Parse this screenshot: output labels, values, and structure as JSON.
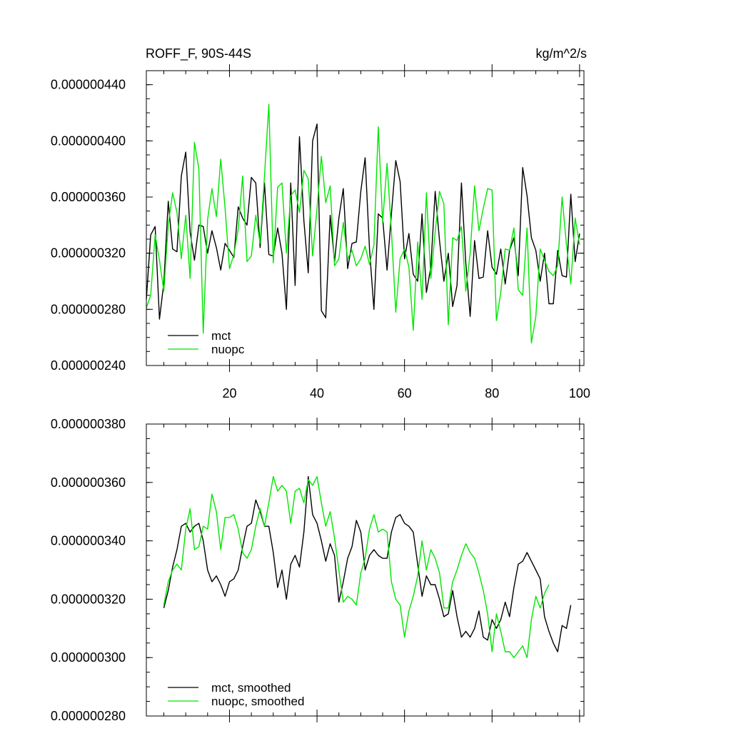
{
  "colors": {
    "mct": "#000000",
    "nuopc": "#00e600"
  },
  "chart_data": [
    {
      "type": "line",
      "title": "ROFF_F, 90S-44S",
      "units": "kg/m^2/s",
      "xlim": [
        1,
        101
      ],
      "ylim": [
        2.4e-07,
        4.5e-07
      ],
      "xticks": [
        20,
        40,
        60,
        80,
        100
      ],
      "xtick_labels": [
        "20",
        "40",
        "60",
        "80",
        "100"
      ],
      "yticks": [
        2.4e-07,
        2.8e-07,
        3.2e-07,
        3.6e-07,
        4e-07,
        4.4e-07
      ],
      "ytick_labels": [
        "0.000000240",
        "0.000000280",
        "0.000000320",
        "0.000000360",
        "0.000000400",
        "0.000000440"
      ],
      "legend_position": "bottom-left",
      "series": [
        {
          "name": "mct",
          "color_key": "mct",
          "x_start": 1,
          "values": [
            2.87e-07,
            3.33e-07,
            3.39e-07,
            2.73e-07,
            2.99e-07,
            3.57e-07,
            3.23e-07,
            3.21e-07,
            3.75e-07,
            3.92e-07,
            3.35e-07,
            3.15e-07,
            3.4e-07,
            3.39e-07,
            3.2e-07,
            3.36e-07,
            3.24e-07,
            3.08e-07,
            3.27e-07,
            3.22e-07,
            3.17e-07,
            3.53e-07,
            3.45e-07,
            3.4e-07,
            3.74e-07,
            3.7e-07,
            3.24e-07,
            3.7e-07,
            3.19e-07,
            3.18e-07,
            3.38e-07,
            3.2e-07,
            2.8e-07,
            3.7e-07,
            2.97e-07,
            4.03e-07,
            3.43e-07,
            3.06e-07,
            4e-07,
            4.12e-07,
            2.79e-07,
            2.74e-07,
            3.47e-07,
            3.14e-07,
            3.45e-07,
            3.66e-07,
            3.09e-07,
            3.27e-07,
            3.28e-07,
            3.64e-07,
            3.88e-07,
            3.23e-07,
            2.8e-07,
            3.48e-07,
            3.45e-07,
            3.08e-07,
            3.48e-07,
            3.86e-07,
            3.71e-07,
            3.16e-07,
            3.34e-07,
            3.05e-07,
            3e-07,
            3.48e-07,
            2.92e-07,
            3.1e-07,
            3.64e-07,
            3.29e-07,
            3e-07,
            3.2e-07,
            2.82e-07,
            2.97e-07,
            3.7e-07,
            3.13e-07,
            2.75e-07,
            3.29e-07,
            3.02e-07,
            3.03e-07,
            3.36e-07,
            3.1e-07,
            3.05e-07,
            3.23e-07,
            2.98e-07,
            3.22e-07,
            3.31e-07,
            3.04e-07,
            3.81e-07,
            3.61e-07,
            3.31e-07,
            3.22e-07,
            3e-07,
            3.2e-07,
            2.84e-07,
            2.84e-07,
            3.22e-07,
            3.04e-07,
            3.03e-07,
            3.62e-07,
            3.14e-07,
            3.34e-07
          ]
        },
        {
          "name": "nuopc",
          "color_key": "nuopc",
          "x_start": 1,
          "values": [
            2.81e-07,
            2.9e-07,
            3.33e-07,
            3.15e-07,
            2.93e-07,
            3.4e-07,
            3.63e-07,
            3.49e-07,
            3.16e-07,
            3.47e-07,
            3.02e-07,
            3.99e-07,
            3.8e-07,
            2.63e-07,
            3.44e-07,
            3.66e-07,
            3.46e-07,
            3.87e-07,
            3.52e-07,
            3.09e-07,
            3.19e-07,
            3.37e-07,
            3.75e-07,
            3.14e-07,
            3.18e-07,
            3.47e-07,
            3.27e-07,
            3.75e-07,
            4.26e-07,
            3.13e-07,
            3.67e-07,
            3.7e-07,
            3.2e-07,
            3.61e-07,
            3.65e-07,
            3.49e-07,
            3.79e-07,
            3.73e-07,
            3.18e-07,
            3.52e-07,
            3.89e-07,
            3.56e-07,
            3.68e-07,
            3.11e-07,
            3.16e-07,
            3.42e-07,
            3.16e-07,
            3.22e-07,
            3.11e-07,
            3.16e-07,
            3.25e-07,
            3.12e-07,
            3.26e-07,
            4.1e-07,
            3.42e-07,
            3.84e-07,
            3.36e-07,
            2.78e-07,
            3.16e-07,
            3.23e-07,
            3.1e-07,
            2.65e-07,
            3.28e-07,
            2.87e-07,
            3.63e-07,
            3.02e-07,
            3.35e-07,
            3.64e-07,
            3.55e-07,
            2.69e-07,
            3.31e-07,
            3.29e-07,
            3.39e-07,
            2.93e-07,
            3.2e-07,
            3.68e-07,
            3.36e-07,
            3.52e-07,
            3.66e-07,
            3.65e-07,
            2.72e-07,
            2.92e-07,
            3.23e-07,
            3.22e-07,
            3.38e-07,
            2.94e-07,
            2.9e-07,
            3.38e-07,
            2.56e-07,
            2.75e-07,
            3.23e-07,
            3.15e-07,
            3.07e-07,
            3.04e-07,
            3.11e-07,
            3.6e-07,
            3.26e-07,
            2.98e-07,
            3.45e-07,
            3.26e-07
          ]
        }
      ]
    },
    {
      "type": "line",
      "xlim": [
        1,
        101
      ],
      "ylim": [
        2.8e-07,
        3.8e-07
      ],
      "xticks": [
        20,
        40,
        60,
        80,
        100
      ],
      "yticks": [
        2.8e-07,
        3e-07,
        3.2e-07,
        3.4e-07,
        3.6e-07,
        3.8e-07
      ],
      "ytick_labels": [
        "0.000000280",
        "0.000000300",
        "0.000000320",
        "0.000000340",
        "0.000000360",
        "0.000000380"
      ],
      "legend_position": "bottom-left",
      "series": [
        {
          "name": "mct, smoothed",
          "color_key": "mct",
          "x_start": 5,
          "values": [
            3.17e-07,
            3.23e-07,
            3.31e-07,
            3.37e-07,
            3.45e-07,
            3.46e-07,
            3.43e-07,
            3.45e-07,
            3.46e-07,
            3.4e-07,
            3.3e-07,
            3.26e-07,
            3.28e-07,
            3.25e-07,
            3.21e-07,
            3.26e-07,
            3.27e-07,
            3.3e-07,
            3.38e-07,
            3.45e-07,
            3.46e-07,
            3.54e-07,
            3.5e-07,
            3.45e-07,
            3.45e-07,
            3.36e-07,
            3.24e-07,
            3.3e-07,
            3.2e-07,
            3.32e-07,
            3.35e-07,
            3.31e-07,
            3.43e-07,
            3.62e-07,
            3.49e-07,
            3.46e-07,
            3.4e-07,
            3.33e-07,
            3.39e-07,
            3.35e-07,
            3.19e-07,
            3.26e-07,
            3.34e-07,
            3.38e-07,
            3.47e-07,
            3.43e-07,
            3.3e-07,
            3.35e-07,
            3.37e-07,
            3.35e-07,
            3.34e-07,
            3.34e-07,
            3.43e-07,
            3.48e-07,
            3.49e-07,
            3.46e-07,
            3.45e-07,
            3.43e-07,
            3.32e-07,
            3.21e-07,
            3.28e-07,
            3.25e-07,
            3.25e-07,
            3.2e-07,
            3.14e-07,
            3.15e-07,
            3.23e-07,
            3.14e-07,
            3.07e-07,
            3.09e-07,
            3.07e-07,
            3.1e-07,
            3.16e-07,
            3.07e-07,
            3.06e-07,
            3.13e-07,
            3.1e-07,
            3.13e-07,
            3.19e-07,
            3.14e-07,
            3.24e-07,
            3.32e-07,
            3.33e-07,
            3.36e-07,
            3.33e-07,
            3.3e-07,
            3.27e-07,
            3.14e-07,
            3.09e-07,
            3.05e-07,
            3.02e-07,
            3.11e-07,
            3.1e-07,
            3.18e-07
          ]
        },
        {
          "name": "nuopc, smoothed",
          "color_key": "nuopc",
          "x_start": 5,
          "values": [
            3.18e-07,
            3.26e-07,
            3.3e-07,
            3.32e-07,
            3.3e-07,
            3.44e-07,
            3.51e-07,
            3.37e-07,
            3.38e-07,
            3.45e-07,
            3.44e-07,
            3.56e-07,
            3.5e-07,
            3.37e-07,
            3.48e-07,
            3.48e-07,
            3.49e-07,
            3.44e-07,
            3.36e-07,
            3.34e-07,
            3.37e-07,
            3.45e-07,
            3.51e-07,
            3.45e-07,
            3.53e-07,
            3.62e-07,
            3.57e-07,
            3.59e-07,
            3.57e-07,
            3.46e-07,
            3.57e-07,
            3.58e-07,
            3.53e-07,
            3.61e-07,
            3.59e-07,
            3.62e-07,
            3.53e-07,
            3.45e-07,
            3.5e-07,
            3.41e-07,
            3.3e-07,
            3.19e-07,
            3.21e-07,
            3.2e-07,
            3.18e-07,
            3.29e-07,
            3.34e-07,
            3.44e-07,
            3.49e-07,
            3.43e-07,
            3.44e-07,
            3.43e-07,
            3.26e-07,
            3.2e-07,
            3.18e-07,
            3.07e-07,
            3.16e-07,
            3.21e-07,
            3.28e-07,
            3.4e-07,
            3.3e-07,
            3.37e-07,
            3.34e-07,
            3.29e-07,
            3.17e-07,
            3.17e-07,
            3.26e-07,
            3.3e-07,
            3.35e-07,
            3.39e-07,
            3.36e-07,
            3.34e-07,
            3.29e-07,
            3.23e-07,
            3.15e-07,
            3.02e-07,
            3.15e-07,
            3.09e-07,
            3.02e-07,
            3.02e-07,
            3e-07,
            3.02e-07,
            3.04e-07,
            3e-07,
            3.13e-07,
            3.21e-07,
            3.17e-07,
            3.22e-07,
            3.25e-07
          ]
        }
      ]
    }
  ]
}
